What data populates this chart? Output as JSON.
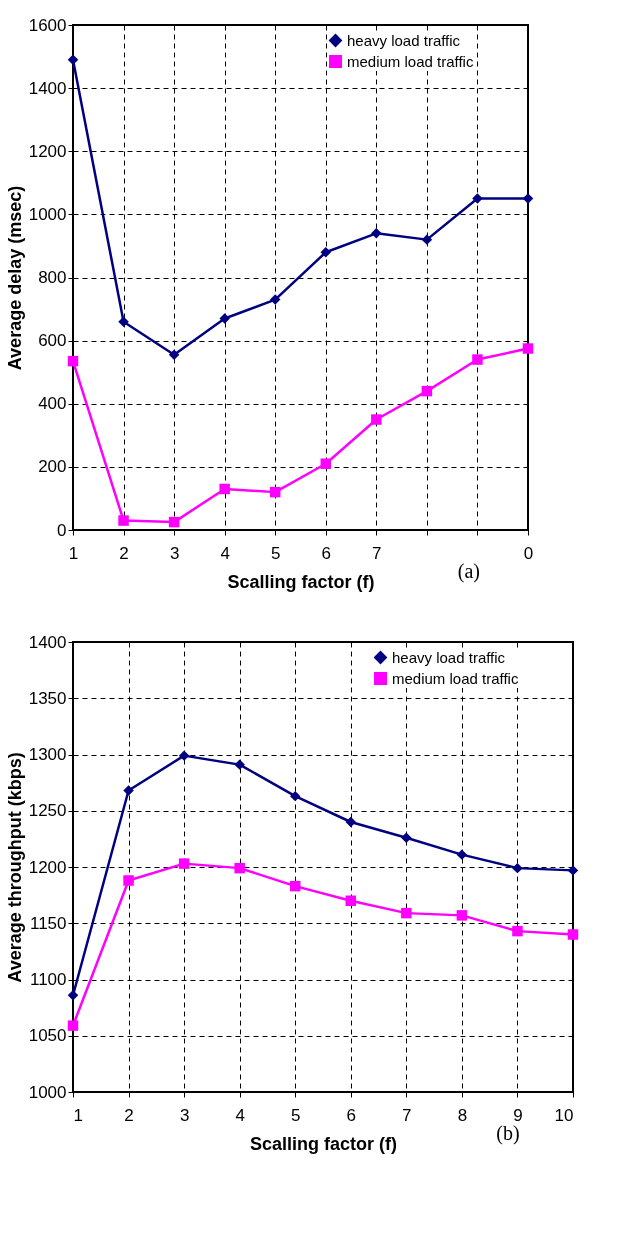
{
  "chart_data": [
    {
      "type": "line",
      "xlabel": "Scalling factor (f)",
      "ylabel": "Average delay (msec)",
      "categories": [
        "1",
        "2",
        "3",
        "4",
        "5",
        "6",
        "7",
        null,
        null,
        "0"
      ],
      "series": [
        {
          "name": "heavy load traffic",
          "color": "#000080",
          "marker": "diamond",
          "values": [
            1490,
            660,
            555,
            670,
            730,
            880,
            940,
            920,
            1050,
            1050
          ]
        },
        {
          "name": "medium load traffic",
          "color": "#ff00ff",
          "marker": "square",
          "values": [
            535,
            30,
            25,
            130,
            120,
            210,
            350,
            440,
            540,
            575
          ]
        }
      ],
      "ylim": [
        0,
        1600
      ],
      "yticks": [
        0,
        200,
        400,
        600,
        800,
        1000,
        1200,
        1400,
        1600
      ],
      "grid": true,
      "legend": "top right",
      "line_style": "solid",
      "annotations": [
        "(a)"
      ]
    },
    {
      "type": "line",
      "xlabel": "Scalling factor (f)",
      "ylabel": "Average throughput (kbps)",
      "x": [
        1,
        2,
        3,
        4,
        5,
        6,
        7,
        8,
        9,
        10
      ],
      "series": [
        {
          "name": "heavy load traffic",
          "color": "#000080",
          "marker": "diamond",
          "values": [
            1086,
            1268,
            1299,
            1291,
            1263,
            1240,
            1226,
            1211,
            1199,
            1197
          ]
        },
        {
          "name": "medium load traffic",
          "color": "#ff00ff",
          "marker": "square",
          "values": [
            1059,
            1188,
            1203,
            1199,
            1183,
            1170,
            1159,
            1157,
            1143,
            1140
          ]
        }
      ],
      "xlim": [
        1,
        10
      ],
      "xticks": [
        1,
        2,
        3,
        4,
        5,
        6,
        7,
        8,
        9,
        10
      ],
      "ylim": [
        1000,
        1400
      ],
      "yticks": [
        1000,
        1050,
        1100,
        1150,
        1200,
        1250,
        1300,
        1350,
        1400
      ],
      "grid": true,
      "legend": "top right",
      "line_style": "solid",
      "annotations": [
        "(b)"
      ]
    }
  ]
}
